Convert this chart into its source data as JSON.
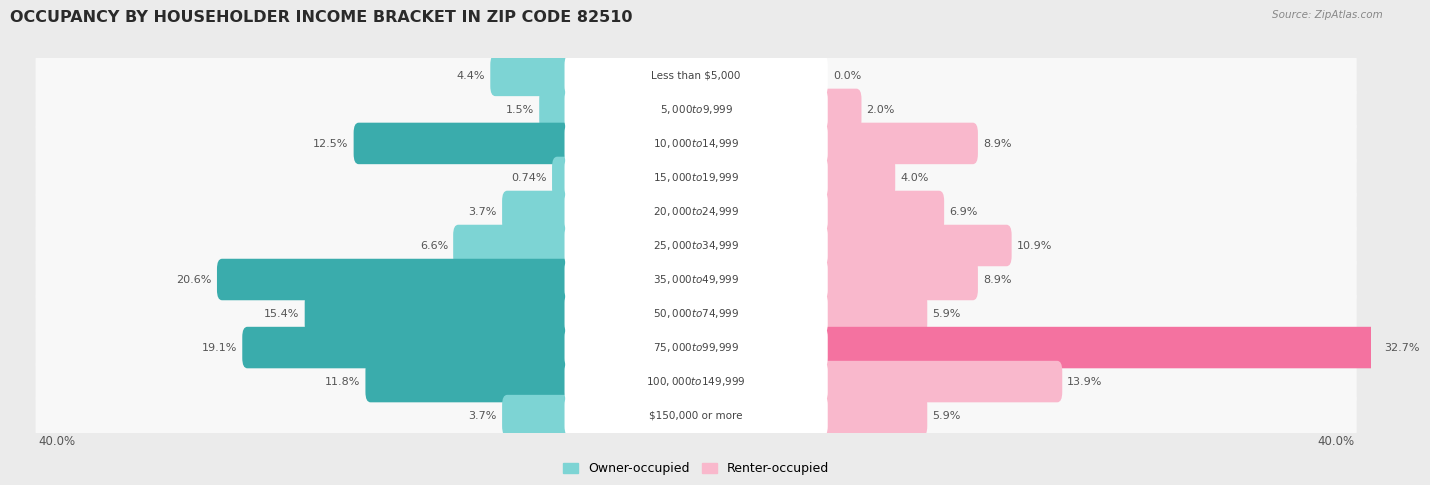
{
  "title": "OCCUPANCY BY HOUSEHOLDER INCOME BRACKET IN ZIP CODE 82510",
  "source": "Source: ZipAtlas.com",
  "categories": [
    "Less than $5,000",
    "$5,000 to $9,999",
    "$10,000 to $14,999",
    "$15,000 to $19,999",
    "$20,000 to $24,999",
    "$25,000 to $34,999",
    "$35,000 to $49,999",
    "$50,000 to $74,999",
    "$75,000 to $99,999",
    "$100,000 to $149,999",
    "$150,000 or more"
  ],
  "owner_values": [
    4.4,
    1.5,
    12.5,
    0.74,
    3.7,
    6.6,
    20.6,
    15.4,
    19.1,
    11.8,
    3.7
  ],
  "renter_values": [
    0.0,
    2.0,
    8.9,
    4.0,
    6.9,
    10.9,
    8.9,
    5.9,
    32.7,
    13.9,
    5.9
  ],
  "owner_color_light": "#7dd4d4",
  "owner_color_dark": "#3aacac",
  "renter_color_light": "#f9b8cc",
  "renter_color_dark": "#f472a0",
  "label_color": "#555555",
  "bg_color": "#ebebeb",
  "row_bg_color": "#f8f8f8",
  "axis_max": 40.0,
  "legend_owner": "Owner-occupied",
  "legend_renter": "Renter-occupied",
  "title_fontsize": 11.5,
  "label_fontsize": 8.0,
  "category_fontsize": 7.5,
  "owner_dark_threshold": 10.0,
  "renter_dark_threshold": 15.0
}
